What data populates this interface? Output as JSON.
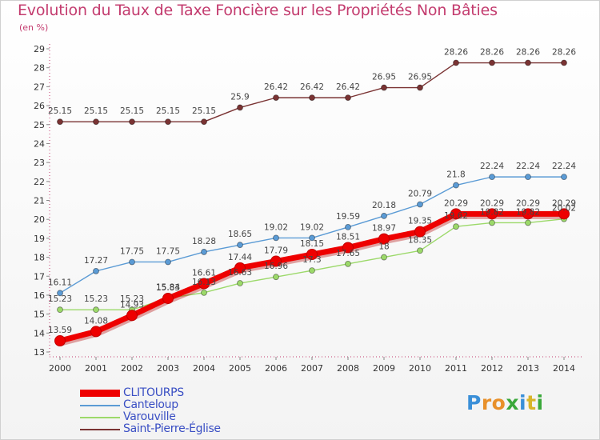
{
  "header": {
    "title": "Evolution du Taux de Taxe Foncière sur les Propriétés Non Bâties",
    "subtitle": "(en %)"
  },
  "logo": {
    "letters": [
      "P",
      "r",
      "o",
      "x",
      "i",
      "t",
      "i"
    ],
    "colors": [
      "#3a8fd8",
      "#e8902a",
      "#e8902a",
      "#3aa83a",
      "#3a8fd8",
      "#d8b52a",
      "#3aa83a"
    ]
  },
  "chart_data": {
    "type": "line",
    "title": "Evolution du Taux de Taxe Foncière sur les Propriétés Non Bâties",
    "ylabel": "(en %)",
    "xlabel": "",
    "ylim": [
      13,
      29
    ],
    "yticks": [
      "13",
      "14",
      "15",
      "16",
      "17",
      "18",
      "19",
      "20",
      "21",
      "22",
      "23",
      "24",
      "25",
      "26",
      "27",
      "28",
      "29"
    ],
    "categories": [
      "2000",
      "2001",
      "2002",
      "2003",
      "2004",
      "2005",
      "2006",
      "2007",
      "2008",
      "2009",
      "2010",
      "2011",
      "2012",
      "2013",
      "2014"
    ],
    "grid": false,
    "legend_position": "bottom-left",
    "series": [
      {
        "name": "Saint-Pierre-Église",
        "color": "#7a3333",
        "values": [
          25.15,
          25.15,
          25.15,
          25.15,
          25.15,
          25.9,
          26.42,
          26.42,
          26.42,
          26.95,
          26.95,
          28.26,
          28.26,
          28.26,
          28.26
        ],
        "labels": [
          "25.15",
          "25.15",
          "25.15",
          "25.15",
          "25.15",
          "25.9",
          "26.42",
          "26.42",
          "26.42",
          "26.95",
          "26.95",
          "28.26",
          "28.26",
          "28.26",
          "28.26"
        ]
      },
      {
        "name": "Canteloup",
        "color": "#5b9bd5",
        "values": [
          16.11,
          17.27,
          17.75,
          17.75,
          18.28,
          18.65,
          19.02,
          19.02,
          19.59,
          20.18,
          20.79,
          21.8,
          22.24,
          22.24,
          22.24
        ],
        "labels": [
          "16.11",
          "17.27",
          "17.75",
          "17.75",
          "18.28",
          "18.65",
          "19.02",
          "19.02",
          "19.59",
          "20.18",
          "20.79",
          "21.8",
          "22.24",
          "22.24",
          "22.24"
        ]
      },
      {
        "name": "Varouville",
        "color": "#9cd96a",
        "values": [
          15.23,
          15.23,
          15.23,
          15.84,
          16.13,
          16.63,
          16.96,
          17.3,
          17.65,
          18.0,
          18.35,
          19.62,
          19.82,
          19.82,
          20.02
        ],
        "labels": [
          "15.23",
          "15.23",
          "15.23",
          "15.84",
          "16.13",
          "16.63",
          "16.96",
          "17.3",
          "17.65",
          "18",
          "18.35",
          "19.62",
          "19.82",
          "19.82",
          "20.02"
        ]
      },
      {
        "name": "CLITOURPS",
        "color": "#ee0000",
        "values": [
          13.59,
          14.08,
          14.93,
          15.83,
          16.61,
          17.44,
          17.79,
          18.15,
          18.51,
          18.97,
          19.35,
          20.29,
          20.29,
          20.29,
          20.29
        ],
        "labels": [
          "13.59",
          "14.08",
          "14.93",
          "15.83",
          "16.61",
          "17.44",
          "17.79",
          "18.15",
          "18.51",
          "18.97",
          "19.35",
          "20.29",
          "20.29",
          "20.29",
          "20.29"
        ]
      }
    ],
    "legend": [
      "CLITOURPS",
      "Canteloup",
      "Varouville",
      "Saint-Pierre-Église"
    ]
  }
}
